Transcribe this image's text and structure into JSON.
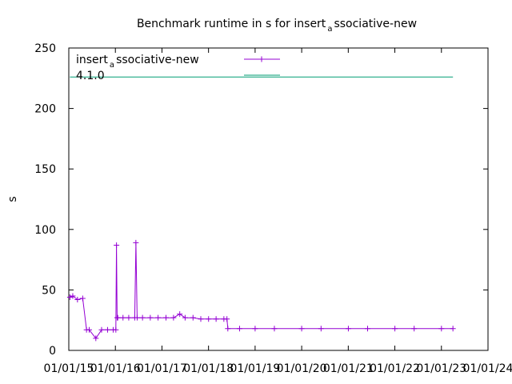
{
  "chart_data": {
    "type": "line",
    "title": {
      "prefix": "Benchmark runtime in s for insert",
      "subscript": "a",
      "suffix": "ssociative-new"
    },
    "ylabel": "s",
    "xlabel": "",
    "ylim": [
      0,
      250
    ],
    "yticks": [
      0,
      50,
      100,
      150,
      200,
      250
    ],
    "xlim": [
      "2015-01-01",
      "2024-01-01"
    ],
    "xticks": [
      "01/01/15",
      "01/01/16",
      "01/01/17",
      "01/01/18",
      "01/01/19",
      "01/01/20",
      "01/01/21",
      "01/01/22",
      "01/01/23",
      "01/01/24"
    ],
    "grid": false,
    "legend_position": "top-left",
    "series": [
      {
        "name_prefix": "insert",
        "name_subscript": "a",
        "name_suffix": "ssociative-new",
        "color": "#9400d3",
        "marker": "plus",
        "x": [
          "2015-01-10",
          "2015-02-01",
          "2015-03-10",
          "2015-04-20",
          "2015-05-20",
          "2015-06-10",
          "2015-08-01",
          "2015-09-15",
          "2015-11-01",
          "2015-12-15",
          "2016-01-05",
          "2016-01-10",
          "2016-01-15",
          "2016-01-20",
          "2016-03-01",
          "2016-04-15",
          "2016-06-01",
          "2016-06-10",
          "2016-06-20",
          "2016-08-01",
          "2016-10-01",
          "2016-12-01",
          "2017-02-01",
          "2017-04-01",
          "2017-05-20",
          "2017-07-01",
          "2017-09-01",
          "2017-11-01",
          "2018-01-01",
          "2018-03-01",
          "2018-05-01",
          "2018-05-25",
          "2018-06-01",
          "2018-09-01",
          "2019-01-01",
          "2019-06-01",
          "2020-01-01",
          "2020-06-01",
          "2021-01-01",
          "2021-06-01",
          "2022-01-01",
          "2022-06-01",
          "2023-01-01",
          "2023-04-01"
        ],
        "values": [
          44,
          45,
          42,
          43,
          17,
          17,
          10,
          17,
          17,
          17,
          17,
          87,
          27,
          27,
          27,
          27,
          27,
          89,
          27,
          27,
          27,
          27,
          27,
          27,
          30,
          27,
          27,
          26,
          26,
          26,
          26,
          26,
          18,
          18,
          18,
          18,
          18,
          18,
          18,
          18,
          18,
          18,
          18,
          18
        ]
      },
      {
        "name": "4.1.0",
        "color": "#009e73",
        "marker": "none",
        "x": [
          "2015-01-10",
          "2023-04-01"
        ],
        "values": [
          226,
          226
        ]
      }
    ]
  }
}
